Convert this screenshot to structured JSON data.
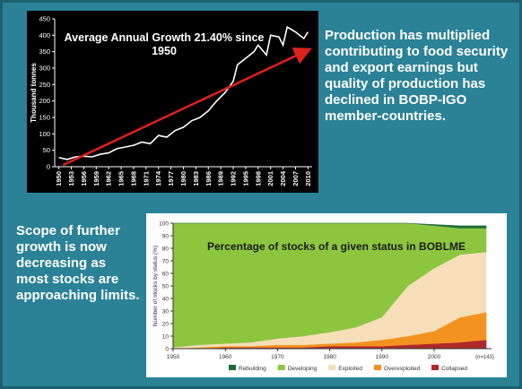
{
  "left_text": "Production has multiplied contributing to food security and export earnings but quality of production has declined in BOBP-IGO member-countries.",
  "bottom_text": "Scope of further growth is now decreasing as most stocks are approaching limits.",
  "chart_data": [
    {
      "type": "line",
      "title": "Average Annual Growth 21.40% since 1950",
      "y_label": "Thousand tonnes",
      "x": [
        1950,
        1952,
        1954,
        1956,
        1958,
        1960,
        1962,
        1964,
        1966,
        1968,
        1970,
        1972,
        1974,
        1976,
        1978,
        1980,
        1982,
        1984,
        1986,
        1988,
        1990,
        1992,
        1993,
        1995,
        1997,
        1998,
        2000,
        2001,
        2003,
        2004,
        2005,
        2007,
        2009,
        2010
      ],
      "series": [
        {
          "name": "Production",
          "color": "#ffffff",
          "values": [
            28,
            22,
            30,
            32,
            30,
            38,
            42,
            55,
            60,
            65,
            75,
            70,
            95,
            90,
            110,
            120,
            140,
            150,
            170,
            200,
            225,
            260,
            310,
            330,
            350,
            370,
            340,
            400,
            395,
            370,
            425,
            410,
            390,
            410
          ]
        }
      ],
      "trend_line": {
        "x": [
          1951,
          2010
        ],
        "values": [
          5,
          355
        ],
        "color": "#e0201e"
      },
      "xlim": [
        1949,
        2011
      ],
      "xticks": [
        1950,
        1953,
        1956,
        1959,
        1962,
        1965,
        1968,
        1971,
        1974,
        1977,
        1980,
        1983,
        1986,
        1989,
        1992,
        1995,
        1998,
        2001,
        2004,
        2007,
        2010
      ],
      "ylim": [
        0,
        450
      ],
      "yticks": [
        0,
        50,
        100,
        150,
        200,
        250,
        300,
        350,
        400,
        450
      ]
    },
    {
      "type": "area",
      "stacked": true,
      "title": "Percentage of stocks of a given status in BOBLME",
      "y_label": "Number of stocks by status (%)",
      "note": "(n=143)",
      "x": [
        1950,
        1955,
        1960,
        1965,
        1970,
        1975,
        1980,
        1985,
        1990,
        1995,
        2000,
        2005,
        2010
      ],
      "series": [
        {
          "name": "Rebuilding",
          "color": "#1e6b35",
          "values": [
            0,
            0,
            0,
            0,
            0,
            0,
            0,
            0,
            0,
            0,
            1,
            2,
            2
          ]
        },
        {
          "name": "Developing",
          "color": "#8cc63f",
          "values": [
            99,
            97,
            96,
            95,
            92,
            90,
            87,
            83,
            75,
            50,
            34,
            21,
            19
          ]
        },
        {
          "name": "Exploited",
          "color": "#f6dfb8",
          "values": [
            1,
            2,
            2,
            3,
            5,
            7,
            9,
            12,
            18,
            40,
            50,
            50,
            48
          ]
        },
        {
          "name": "Overexploited",
          "color": "#f3931f",
          "values": [
            0,
            1,
            1,
            1,
            2,
            2,
            2,
            3,
            5,
            7,
            10,
            20,
            22
          ]
        },
        {
          "name": "Collapsed",
          "color": "#b0282a",
          "values": [
            0,
            0,
            1,
            1,
            1,
            1,
            2,
            2,
            2,
            3,
            4,
            5,
            7
          ]
        }
      ],
      "stack_order": [
        "Collapsed",
        "Overexploited",
        "Exploited",
        "Developing",
        "Rebuilding"
      ],
      "xlim": [
        1950,
        2011
      ],
      "xticks": [
        1950,
        1960,
        1970,
        1980,
        1990,
        2000
      ],
      "ylim": [
        0,
        100
      ],
      "yticks": [
        0,
        10,
        20,
        30,
        40,
        50,
        60,
        70,
        80,
        90,
        100
      ]
    }
  ]
}
